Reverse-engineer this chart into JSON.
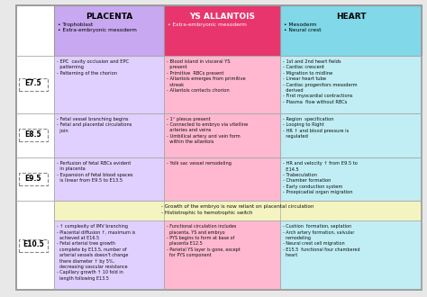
{
  "header_placenta": {
    "label": "PLACENTA",
    "sub": [
      "Trophoblast",
      "Extra-embryonic mesoderm"
    ],
    "color": "#c8a8f0",
    "text_color": "#000000"
  },
  "header_ys": {
    "label": "YS ALLANTOIS",
    "sub": [
      "Extra-embryonic mesoderm"
    ],
    "color": "#e8356e",
    "text_color": "#ffffff"
  },
  "header_heart": {
    "label": "HEART",
    "sub": [
      "Mesoderm",
      "Neural crest"
    ],
    "color": "#80d8e8",
    "text_color": "#000000"
  },
  "rows": [
    {
      "time": "E7.5",
      "placenta": "- EPC  cavity occlusion and EPC\n  patterning\n- Patterning of the chorion",
      "ys": "- Blood island in visceral YS\n  present\n- Primitive  RBCs present\n- Allantois emerges from primitive\n  streak\n- Allantois contacts chorion",
      "heart": "- 1st and 2nd heart fields\n- Cardiac crescent\n- Migration to midline\n- Linear heart tube\n- Cardiac progenitors mesoderm\n  derived\n- First myocardial contractions\n- Plasma  flow without RBCs"
    },
    {
      "time": "E8.5",
      "placenta": "- Fetal vessel branching begins\n- Fetal and placental circulations\n  join",
      "ys": "- 1° plexus present\n- Connected to embryo via vitelline\n  arteries and veins\n- Umbilical artery and vein form\n  within the allantois",
      "heart": "- Region  specification\n- Looping to Right\n- HR ↑ and blood pressure is\n  regulated"
    },
    {
      "time": "E9.5",
      "placenta": "- Perfusion of fetal RBCs evident\n  in placenta\n- Expansion of fetal blood spaces\n  is linear from E9.5 to E13.5",
      "ys": "- Yolk sac vessel remodeling",
      "heart": "- HR and velocity ↑ from E9.5 to\n  E14.5\n- Trabeculation\n- Chamber formation\n- Early conduction system\n- Proepicadial organ migration"
    },
    {
      "time": "E10.5",
      "shared": "- Growth of the embryo is now reliant on placental circulation\n- Histiotrophic to hemotrophic switch",
      "placenta": "- ↑ complexity of IMV branching\n- Placental diffusion ↑, maximum is\n  achieved at E16.5\n- Fetal arterial tree growth\n  complete by E13.5, number of\n  arterial vessels doesn't change\n  there diameter ↑ by 5%,\n  decreasing vascular resistance\n- Capillary growth ↑ 10 fold in\n  length following E13.5",
      "ys": "- Functional circulation includes\n  placenta, YS and embryo\n- PYS begins to form at base of\n  placenta E12.5\n- Parietal YS layer is gone, except\n  for PYS component",
      "heart": "- Cushion  formation, septation\n- Arch artery formation, valvular\n  remodeling\n- Neural crest cell migration\n- E15.5  functional four chambered\n  heart"
    }
  ],
  "placenta_color": "#e0d0ff",
  "ys_color": "#ffb8d0",
  "heart_color": "#c0eef4",
  "shared_color": "#f4f4c0",
  "outer_color": "#999999",
  "line_color": "#aaaaaa"
}
